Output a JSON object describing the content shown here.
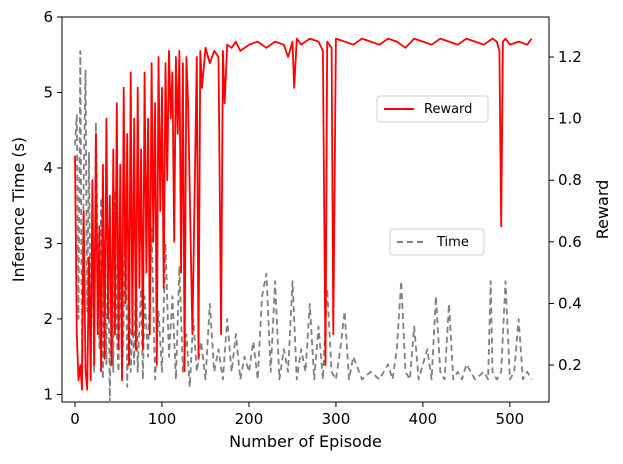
{
  "chart_data": {
    "type": "line",
    "xlabel": "Number of Episode",
    "ylabel_left": "Inference Time (s)",
    "ylabel_right": "Reward",
    "xlim": [
      -15,
      545
    ],
    "ylim_left": [
      0.9,
      6.0
    ],
    "ylim_right": [
      0.08,
      1.33
    ],
    "x_ticks": [
      0,
      100,
      200,
      300,
      400,
      500
    ],
    "y_left_ticks": [
      1,
      2,
      3,
      4,
      5,
      6
    ],
    "y_right_ticks": [
      0.2,
      0.4,
      0.6,
      0.8,
      1.0,
      1.2
    ],
    "grid": false,
    "series": [
      {
        "name": "Reward",
        "axis": "right",
        "color": "#ff0000",
        "style": "solid",
        "x": [
          0,
          2,
          4,
          6,
          8,
          10,
          12,
          14,
          16,
          18,
          20,
          22,
          24,
          26,
          28,
          30,
          32,
          34,
          36,
          38,
          40,
          42,
          44,
          46,
          48,
          50,
          52,
          54,
          56,
          58,
          60,
          62,
          64,
          66,
          68,
          70,
          72,
          74,
          76,
          78,
          80,
          82,
          84,
          86,
          88,
          90,
          92,
          94,
          96,
          98,
          100,
          102,
          104,
          106,
          108,
          110,
          112,
          114,
          116,
          118,
          120,
          122,
          124,
          126,
          128,
          130,
          135,
          140,
          142,
          144,
          146,
          150,
          155,
          160,
          165,
          168,
          170,
          172,
          175,
          180,
          185,
          190,
          200,
          210,
          220,
          230,
          240,
          245,
          250,
          252,
          255,
          260,
          270,
          280,
          285,
          288,
          290,
          295,
          297,
          300,
          310,
          320,
          330,
          340,
          350,
          360,
          370,
          380,
          390,
          400,
          410,
          420,
          430,
          440,
          450,
          460,
          470,
          480,
          485,
          488,
          490,
          492,
          495,
          500,
          510,
          520,
          525
        ],
        "y": [
          0.88,
          0.3,
          0.15,
          0.2,
          0.12,
          0.7,
          0.18,
          0.12,
          0.55,
          0.15,
          0.8,
          0.2,
          0.95,
          0.3,
          0.65,
          0.18,
          0.85,
          0.22,
          1.0,
          0.35,
          0.75,
          0.2,
          0.9,
          0.3,
          1.05,
          0.25,
          0.85,
          0.15,
          1.1,
          0.4,
          0.95,
          0.2,
          1.15,
          0.3,
          1.0,
          0.25,
          1.1,
          0.45,
          0.9,
          0.25,
          1.15,
          0.5,
          1.0,
          0.3,
          1.18,
          0.6,
          1.05,
          0.2,
          1.2,
          0.7,
          1.1,
          0.45,
          1.18,
          0.8,
          1.22,
          1.0,
          1.15,
          0.6,
          1.2,
          0.95,
          1.22,
          0.5,
          1.18,
          0.18,
          1.2,
          1.05,
          0.3,
          1.2,
          0.22,
          1.22,
          1.1,
          1.23,
          1.18,
          1.22,
          1.2,
          0.3,
          1.22,
          1.05,
          1.24,
          1.23,
          1.25,
          1.22,
          1.24,
          1.25,
          1.23,
          1.25,
          1.24,
          1.2,
          1.25,
          1.1,
          1.26,
          1.24,
          1.26,
          1.25,
          1.22,
          0.2,
          1.25,
          1.23,
          0.3,
          1.26,
          1.25,
          1.24,
          1.26,
          1.25,
          1.24,
          1.26,
          1.25,
          1.23,
          1.26,
          1.25,
          1.24,
          1.26,
          1.25,
          1.24,
          1.26,
          1.25,
          1.24,
          1.26,
          1.25,
          1.22,
          0.65,
          1.25,
          1.26,
          1.24,
          1.25,
          1.24,
          1.26
        ]
      },
      {
        "name": "Time",
        "axis": "left",
        "color": "#808080",
        "style": "dashed",
        "x": [
          0,
          2,
          4,
          6,
          8,
          10,
          12,
          14,
          16,
          18,
          20,
          22,
          24,
          26,
          28,
          30,
          32,
          34,
          36,
          38,
          40,
          42,
          44,
          46,
          48,
          50,
          52,
          54,
          56,
          58,
          60,
          62,
          64,
          66,
          68,
          70,
          72,
          74,
          76,
          78,
          80,
          84,
          88,
          92,
          96,
          100,
          104,
          108,
          112,
          116,
          120,
          124,
          128,
          132,
          136,
          140,
          145,
          150,
          155,
          160,
          165,
          170,
          175,
          180,
          185,
          190,
          195,
          200,
          205,
          210,
          215,
          220,
          225,
          230,
          235,
          240,
          245,
          250,
          255,
          260,
          265,
          270,
          275,
          280,
          285,
          290,
          295,
          300,
          305,
          310,
          315,
          320,
          330,
          340,
          350,
          360,
          365,
          370,
          375,
          380,
          385,
          390,
          395,
          400,
          405,
          410,
          415,
          420,
          425,
          430,
          435,
          440,
          445,
          450,
          460,
          470,
          475,
          478,
          480,
          485,
          490,
          495,
          500,
          505,
          510,
          515,
          520,
          525
        ],
        "y": [
          4.3,
          4.7,
          2.0,
          5.55,
          1.4,
          3.8,
          5.3,
          2.1,
          4.2,
          1.5,
          3.1,
          1.3,
          4.6,
          2.8,
          1.6,
          3.6,
          1.2,
          2.6,
          1.4,
          3.2,
          0.9,
          2.5,
          1.3,
          3.7,
          1.8,
          1.3,
          2.9,
          1.2,
          2.0,
          3.5,
          1.1,
          2.6,
          1.3,
          2.0,
          1.4,
          2.7,
          1.3,
          1.9,
          2.4,
          1.2,
          2.3,
          1.5,
          3.2,
          1.2,
          2.1,
          1.3,
          3.0,
          1.5,
          2.3,
          1.2,
          2.7,
          1.3,
          1.8,
          1.1,
          2.0,
          1.3,
          1.7,
          1.2,
          2.2,
          1.3,
          1.6,
          1.2,
          2.0,
          1.3,
          1.8,
          1.2,
          1.5,
          1.3,
          1.7,
          1.2,
          2.3,
          2.6,
          1.3,
          2.5,
          1.2,
          1.6,
          1.3,
          2.5,
          1.2,
          1.6,
          1.3,
          2.2,
          1.2,
          1.9,
          1.2,
          2.4,
          1.3,
          1.2,
          1.6,
          2.1,
          1.2,
          1.5,
          1.2,
          1.3,
          1.2,
          1.4,
          1.2,
          1.6,
          2.5,
          1.3,
          1.2,
          1.9,
          1.2,
          1.4,
          1.6,
          1.2,
          2.3,
          1.3,
          1.2,
          2.2,
          1.2,
          1.3,
          1.2,
          1.4,
          1.2,
          1.3,
          1.2,
          2.5,
          1.3,
          1.2,
          1.3,
          2.5,
          1.2,
          1.3,
          2.0,
          1.2,
          1.3,
          1.2
        ]
      }
    ],
    "legends": [
      {
        "label": "Reward",
        "placement": "upper-right"
      },
      {
        "label": "Time",
        "placement": "center-right"
      }
    ]
  }
}
